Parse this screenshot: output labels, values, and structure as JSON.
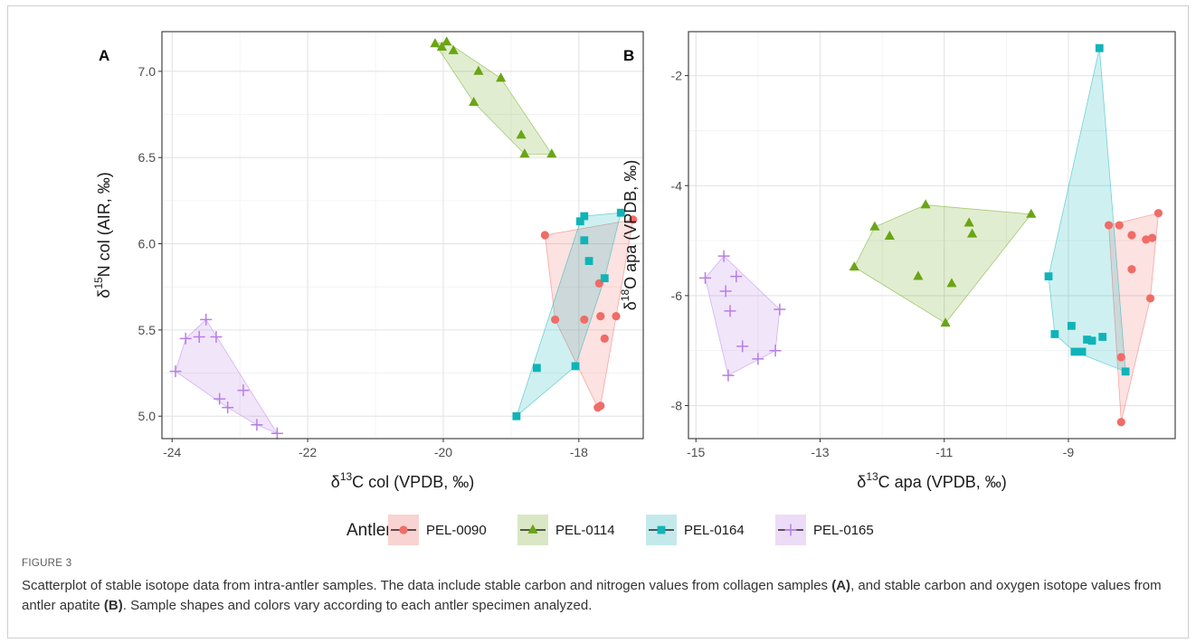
{
  "figure": {
    "label": "FIGURE 3",
    "caption_parts": [
      {
        "text": "Scatterplot of stable isotope data from intra-antler samples. The data include stable carbon and nitrogen values from collagen samples ",
        "bold": false
      },
      {
        "text": "(A)",
        "bold": true
      },
      {
        "text": ", and stable carbon and oxygen isotope values from antler apatite ",
        "bold": false
      },
      {
        "text": "(B)",
        "bold": true
      },
      {
        "text": ". Sample shapes and colors vary according to each antler specimen analyzed.",
        "bold": false
      }
    ]
  },
  "legend": {
    "title": "Antler",
    "position": "bottom",
    "entries": [
      {
        "name": "PEL-0090",
        "shape": "circle",
        "color": "#f06c67",
        "fill": "#f8d3d1"
      },
      {
        "name": "PEL-0114",
        "shape": "triangle",
        "color": "#6aa515",
        "fill": "#d9e7c4"
      },
      {
        "name": "PEL-0164",
        "shape": "square",
        "color": "#10b4b8",
        "fill": "#c4e9ea"
      },
      {
        "name": "PEL-0165",
        "shape": "cross",
        "color": "#b77ee7",
        "fill": "#ecdcf7"
      }
    ]
  },
  "chart_data": [
    {
      "panel": "A",
      "type": "scatter",
      "hulls": true,
      "xlabel": {
        "pre": "δ",
        "sup": "13",
        "post": "C col (VPDB, ‰)"
      },
      "ylabel": {
        "pre": "δ",
        "sup": "15",
        "post": "N col (AIR, ‰)"
      },
      "xlim": [
        -24.15,
        -17.05
      ],
      "ylim": [
        4.87,
        7.23
      ],
      "xticks": [
        -24,
        -22,
        -20,
        -18
      ],
      "yticks": [
        5.0,
        5.5,
        6.0,
        6.5,
        7.0
      ],
      "xtick_labels": [
        "-24",
        "-22",
        "-20",
        "-18"
      ],
      "ytick_labels": [
        "5.0",
        "5.5",
        "6.0",
        "6.5",
        "7.0"
      ],
      "grid": true,
      "series": [
        {
          "name": "PEL-0090",
          "points": [
            [
              -18.5,
              6.05
            ],
            [
              -18.35,
              5.56
            ],
            [
              -17.92,
              5.56
            ],
            [
              -17.72,
              5.05
            ],
            [
              -17.68,
              5.06
            ],
            [
              -17.7,
              5.77
            ],
            [
              -17.68,
              5.58
            ],
            [
              -17.62,
              5.45
            ],
            [
              -17.45,
              5.58
            ],
            [
              -17.2,
              6.14
            ]
          ]
        },
        {
          "name": "PEL-0114",
          "points": [
            [
              -20.12,
              7.16
            ],
            [
              -20.02,
              7.14
            ],
            [
              -19.95,
              7.17
            ],
            [
              -19.85,
              7.12
            ],
            [
              -19.48,
              7.0
            ],
            [
              -19.15,
              6.96
            ],
            [
              -19.55,
              6.82
            ],
            [
              -18.85,
              6.63
            ],
            [
              -18.8,
              6.52
            ],
            [
              -18.4,
              6.52
            ]
          ]
        },
        {
          "name": "PEL-0164",
          "points": [
            [
              -18.92,
              5.0
            ],
            [
              -18.62,
              5.28
            ],
            [
              -18.05,
              5.29
            ],
            [
              -17.98,
              6.13
            ],
            [
              -17.92,
              6.16
            ],
            [
              -17.92,
              6.02
            ],
            [
              -17.85,
              5.9
            ],
            [
              -17.62,
              5.8
            ],
            [
              -17.38,
              6.18
            ]
          ]
        },
        {
          "name": "PEL-0165",
          "points": [
            [
              -23.95,
              5.26
            ],
            [
              -23.8,
              5.45
            ],
            [
              -23.6,
              5.46
            ],
            [
              -23.5,
              5.56
            ],
            [
              -23.35,
              5.46
            ],
            [
              -23.3,
              5.1
            ],
            [
              -23.18,
              5.05
            ],
            [
              -22.95,
              5.15
            ],
            [
              -22.75,
              4.95
            ],
            [
              -22.45,
              4.9
            ]
          ]
        }
      ]
    },
    {
      "panel": "B",
      "type": "scatter",
      "hulls": true,
      "xlabel": {
        "pre": "δ",
        "sup": "13",
        "post": "C apa (VPDB, ‰)"
      },
      "ylabel": {
        "pre": "δ",
        "sup": "18",
        "post": "O apa (VPDB, ‰)"
      },
      "xlim": [
        -15.12,
        -7.28
      ],
      "ylim": [
        -8.6,
        -1.2
      ],
      "xticks": [
        -15,
        -13,
        -11,
        -9
      ],
      "yticks": [
        -8,
        -6,
        -4,
        -2
      ],
      "xtick_labels": [
        "-15",
        "-13",
        "-11",
        "-9"
      ],
      "ytick_labels": [
        "-8",
        "-6",
        "-4",
        "-2"
      ],
      "grid": true,
      "series": [
        {
          "name": "PEL-0090",
          "points": [
            [
              -8.35,
              -4.72
            ],
            [
              -8.18,
              -4.72
            ],
            [
              -7.98,
              -4.9
            ],
            [
              -7.98,
              -5.52
            ],
            [
              -7.75,
              -4.98
            ],
            [
              -7.65,
              -4.95
            ],
            [
              -7.68,
              -6.05
            ],
            [
              -7.55,
              -4.5
            ],
            [
              -8.15,
              -7.12
            ],
            [
              -8.15,
              -8.3
            ]
          ]
        },
        {
          "name": "PEL-0114",
          "points": [
            [
              -12.45,
              -5.48
            ],
            [
              -12.12,
              -4.75
            ],
            [
              -11.88,
              -4.92
            ],
            [
              -11.3,
              -4.35
            ],
            [
              -11.42,
              -5.65
            ],
            [
              -10.88,
              -5.78
            ],
            [
              -10.98,
              -6.5
            ],
            [
              -10.6,
              -4.68
            ],
            [
              -10.55,
              -4.88
            ],
            [
              -9.6,
              -4.52
            ]
          ]
        },
        {
          "name": "PEL-0164",
          "points": [
            [
              -9.32,
              -5.65
            ],
            [
              -9.22,
              -6.7
            ],
            [
              -8.95,
              -6.55
            ],
            [
              -8.9,
              -7.02
            ],
            [
              -8.78,
              -7.02
            ],
            [
              -8.7,
              -6.8
            ],
            [
              -8.62,
              -6.82
            ],
            [
              -8.45,
              -6.75
            ],
            [
              -8.5,
              -1.5
            ],
            [
              -8.08,
              -7.38
            ]
          ]
        },
        {
          "name": "PEL-0165",
          "points": [
            [
              -14.85,
              -5.68
            ],
            [
              -14.55,
              -5.28
            ],
            [
              -14.52,
              -5.92
            ],
            [
              -14.45,
              -6.28
            ],
            [
              -14.35,
              -5.65
            ],
            [
              -14.25,
              -6.92
            ],
            [
              -14.48,
              -7.45
            ],
            [
              -14.0,
              -7.15
            ],
            [
              -13.72,
              -7.0
            ],
            [
              -13.65,
              -6.25
            ]
          ]
        }
      ]
    }
  ]
}
